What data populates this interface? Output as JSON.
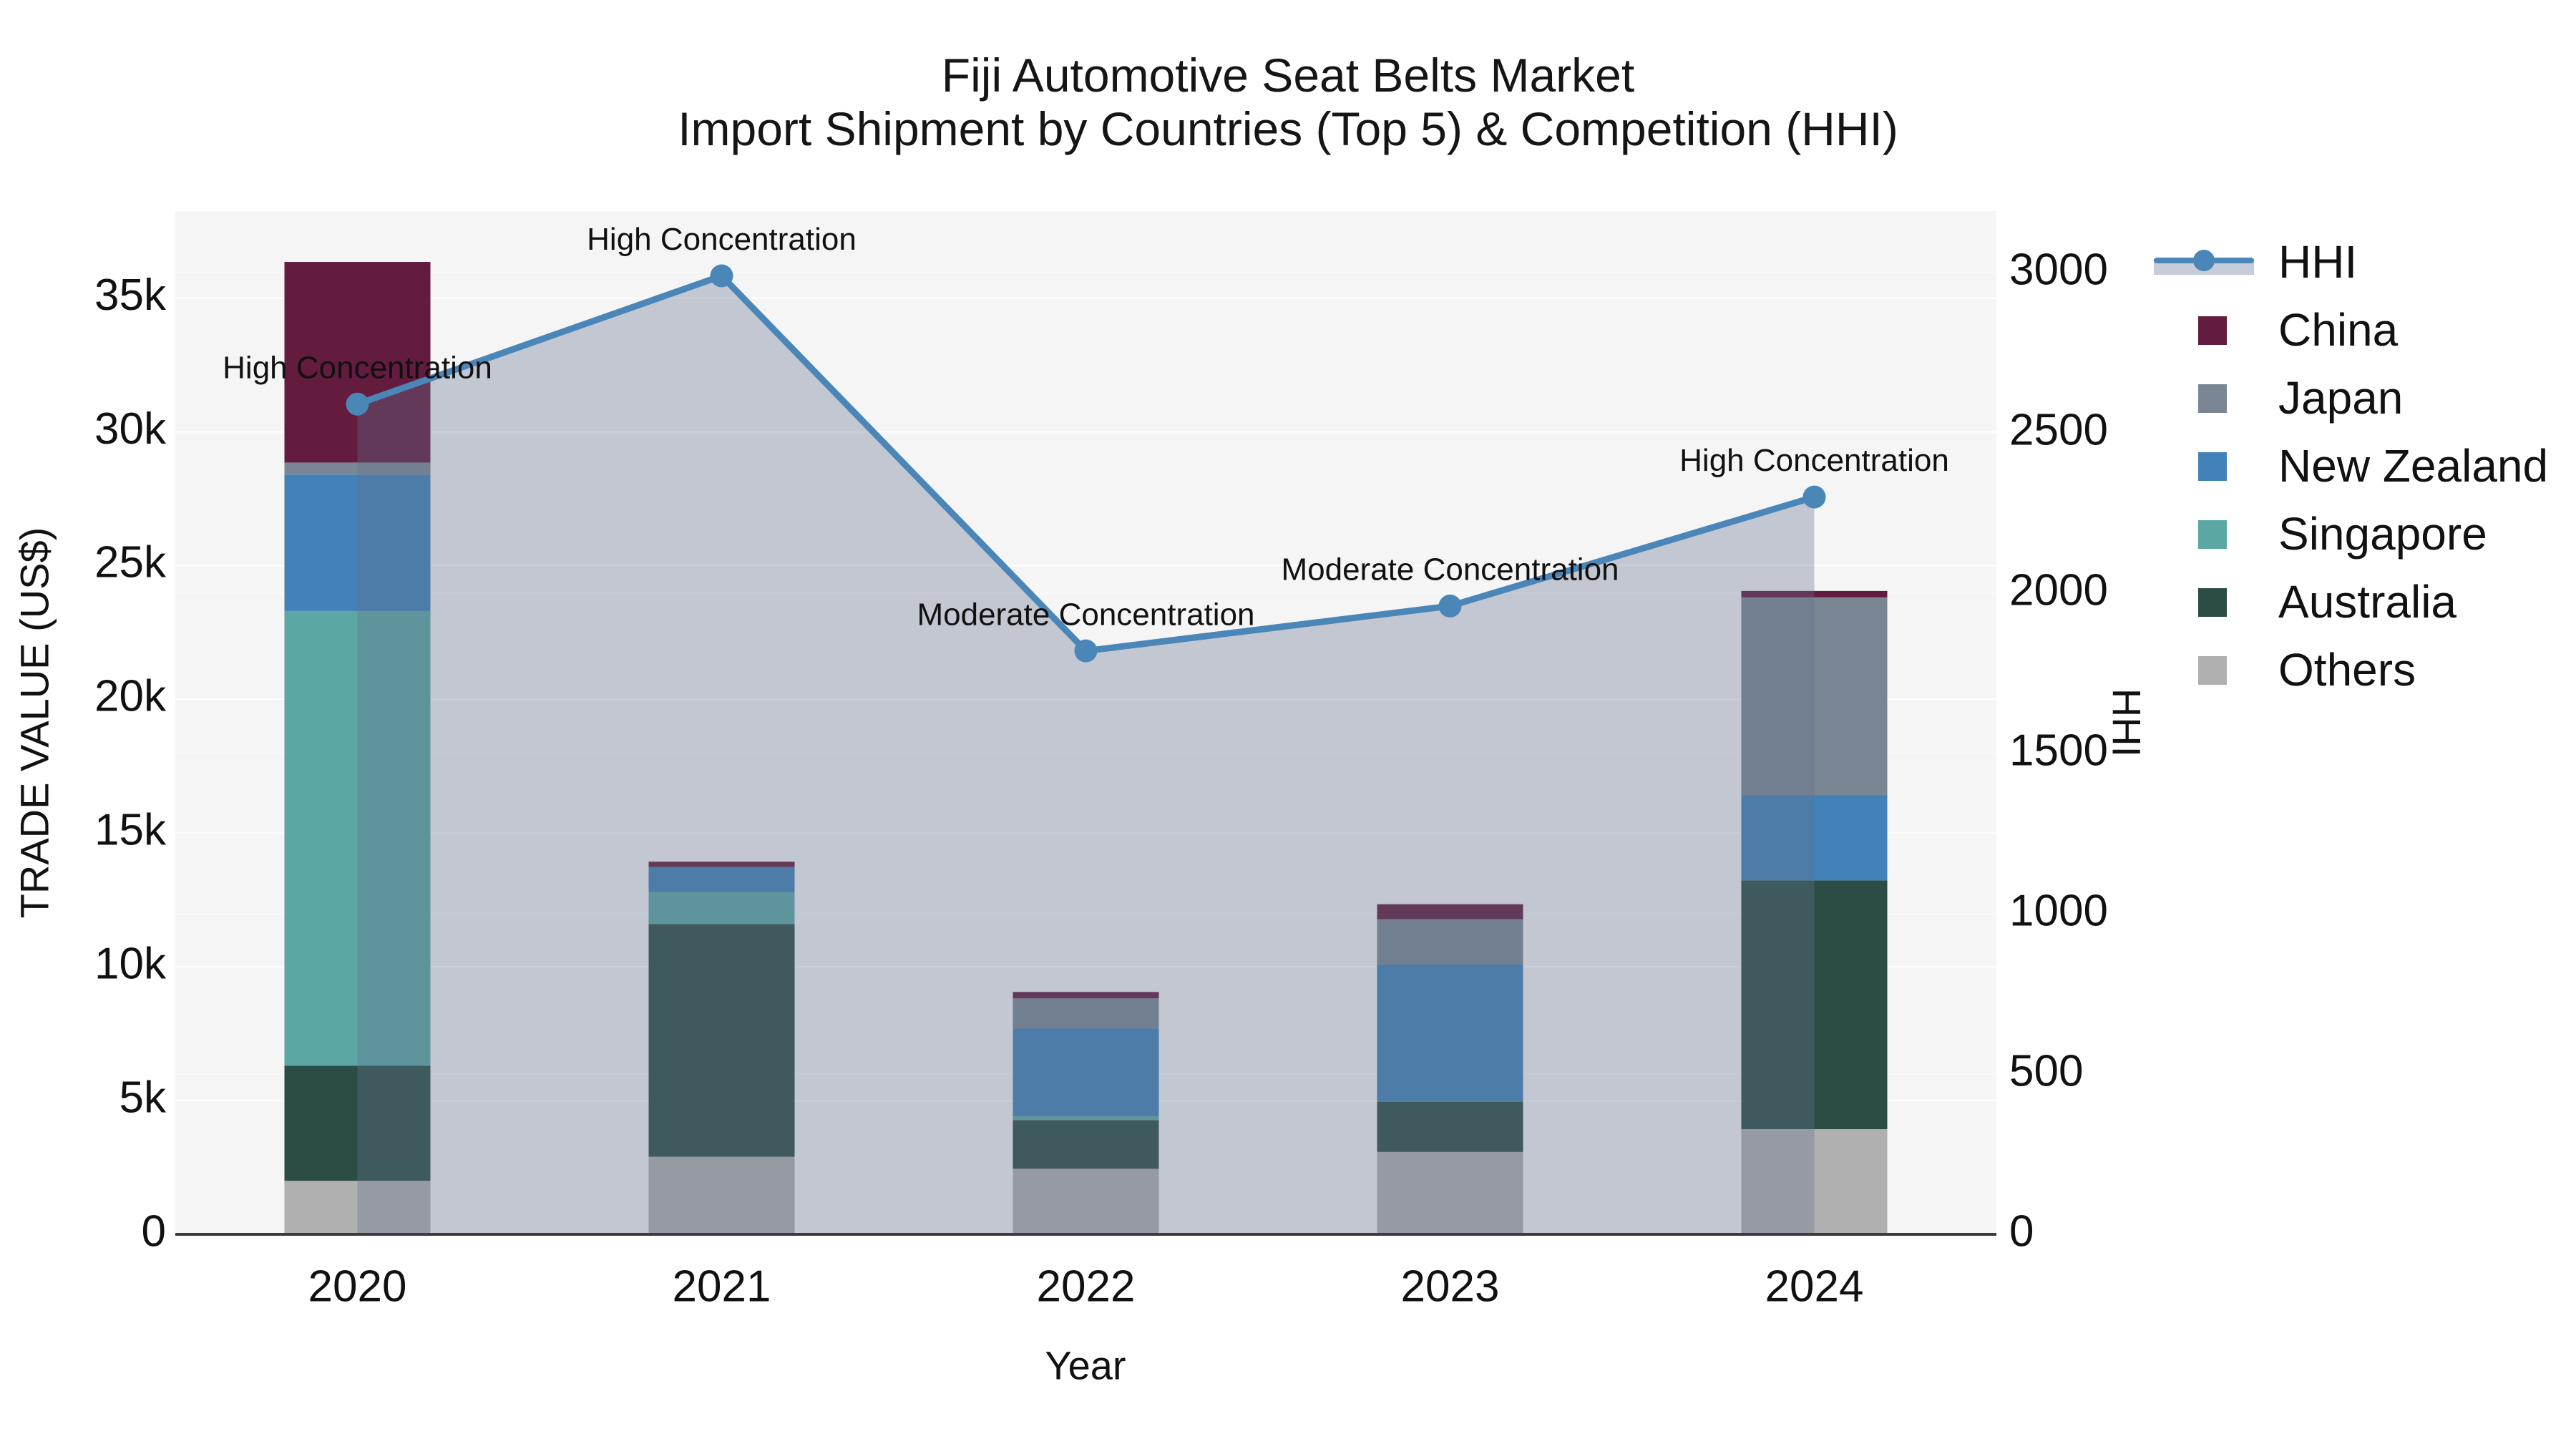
{
  "title": {
    "line1": "Fiji Automotive Seat Belts Market",
    "line2": "Import Shipment by Countries (Top 5) & Competition (HHI)"
  },
  "axes": {
    "y_left": {
      "title": "TRADE VALUE (US$)",
      "tick_labels": [
        "0",
        "5k",
        "10k",
        "15k",
        "20k",
        "25k",
        "30k",
        "35k"
      ],
      "tick_values": [
        0,
        5000,
        10000,
        15000,
        20000,
        25000,
        30000,
        35000
      ],
      "range": [
        0,
        38250
      ]
    },
    "y_right": {
      "title": "HHI",
      "tick_labels": [
        "0",
        "500",
        "1000",
        "1500",
        "2000",
        "2500",
        "3000"
      ],
      "tick_values": [
        0,
        500,
        1000,
        1500,
        2000,
        2500,
        3000
      ],
      "range": [
        0,
        3192
      ]
    },
    "x": {
      "title": "Year",
      "tick_labels": [
        "2020",
        "2021",
        "2022",
        "2023",
        "2024"
      ]
    }
  },
  "legend": {
    "items": [
      {
        "label": "HHI",
        "type": "line",
        "color": "#4a86b8"
      },
      {
        "label": "China",
        "type": "swatch",
        "color": "#631b3e"
      },
      {
        "label": "Japan",
        "type": "swatch",
        "color": "#7a8694"
      },
      {
        "label": "New Zealand",
        "type": "swatch",
        "color": "#4282b8"
      },
      {
        "label": "Singapore",
        "type": "swatch",
        "color": "#5ba7a3"
      },
      {
        "label": "Australia",
        "type": "swatch",
        "color": "#2c4d46"
      },
      {
        "label": "Others",
        "type": "swatch",
        "color": "#b0b0b0"
      }
    ]
  },
  "chart_data": {
    "type": "bar+line",
    "categories": [
      "2020",
      "2021",
      "2022",
      "2023",
      "2024"
    ],
    "stack_order_bottom_to_top": [
      "Others",
      "Australia",
      "Singapore",
      "New Zealand",
      "Japan",
      "China"
    ],
    "series": [
      {
        "name": "China",
        "color": "#631b3e",
        "values": [
          7500,
          200,
          240,
          560,
          240
        ]
      },
      {
        "name": "Japan",
        "color": "#7a8694",
        "values": [
          450,
          0,
          1120,
          1690,
          7400
        ]
      },
      {
        "name": "New Zealand",
        "color": "#4282b8",
        "values": [
          5100,
          930,
          3290,
          5140,
          3180
        ]
      },
      {
        "name": "Singapore",
        "color": "#5ba7a3",
        "values": [
          17000,
          1200,
          140,
          0,
          0
        ]
      },
      {
        "name": "Australia",
        "color": "#2c4d46",
        "values": [
          4300,
          8700,
          1820,
          1870,
          9300
        ]
      },
      {
        "name": "Others",
        "color": "#b0b0b0",
        "values": [
          2000,
          2900,
          2450,
          3080,
          3930
        ]
      }
    ],
    "line_series": {
      "name": "HHI",
      "color": "#4a86b8",
      "area_fill": "rgba(100,115,140,0.35)",
      "values": [
        2590,
        2990,
        1820,
        1960,
        2300
      ]
    },
    "annotations": [
      {
        "x": "2020",
        "text": "High Concentration"
      },
      {
        "x": "2021",
        "text": "High Concentration"
      },
      {
        "x": "2022",
        "text": "Moderate Concentration"
      },
      {
        "x": "2023",
        "text": "Moderate Concentration"
      },
      {
        "x": "2024",
        "text": "High Concentration"
      }
    ],
    "xlabel": "Year",
    "ylabel_left": "TRADE VALUE (US$)",
    "ylabel_right": "HHI",
    "grid": true,
    "legend_position": "right"
  },
  "colors": {
    "plot_bg": "#f5f5f6",
    "grid": "#ffffff",
    "axis_line": "#3c3c3c",
    "text": "#111111"
  }
}
